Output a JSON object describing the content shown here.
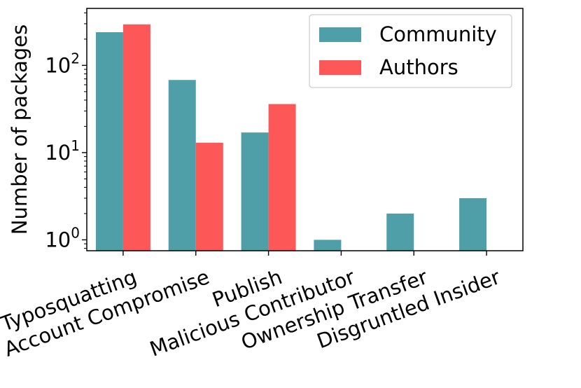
{
  "chart_data": {
    "type": "bar",
    "title": "",
    "xlabel": "",
    "ylabel": "Number of packages",
    "yscale": "log",
    "ylim": [
      0.75,
      450
    ],
    "yticks": [
      {
        "value": 1,
        "base": "10",
        "exp": "0"
      },
      {
        "value": 10,
        "base": "10",
        "exp": "1"
      },
      {
        "value": 100,
        "base": "10",
        "exp": "2"
      }
    ],
    "categories": [
      "Typosquatting",
      "Account Compromise",
      "Publish",
      "Malicious Contributor",
      "Ownership Transfer",
      "Disgruntled Insider"
    ],
    "series": [
      {
        "name": "Community",
        "color": "#4e9fa8",
        "values": [
          240,
          68,
          17,
          1,
          2,
          3
        ]
      },
      {
        "name": "Authors",
        "color": "#fd5757",
        "values": [
          295,
          13,
          36,
          0,
          0,
          0
        ]
      }
    ],
    "grid": false,
    "legend": "top-right"
  }
}
